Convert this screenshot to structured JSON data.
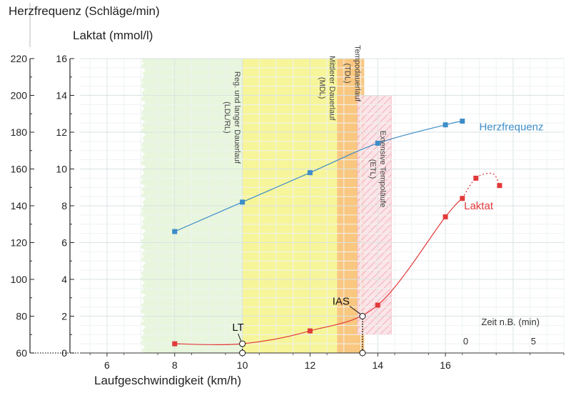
{
  "chart_data": {
    "type": "line",
    "hr_axis_label": "Herzfrequenz (Schläge/min)",
    "lactate_axis_label": "Laktat (mmol/l)",
    "xlabel": "Laufgeschwindigkeit (km/h)",
    "hr_ticks": [
      "60",
      "80",
      "100",
      "120",
      "140",
      "160",
      "180",
      "200",
      "220"
    ],
    "lactate_ticks": [
      "0",
      "2",
      "4",
      "6",
      "8",
      "10",
      "12",
      "14",
      "16"
    ],
    "x_ticks": [
      "6",
      "8",
      "10",
      "12",
      "14",
      "16"
    ],
    "xlim": [
      5.2,
      19.5
    ],
    "lactate_ylim": [
      0,
      16
    ],
    "hr_ylim": [
      60,
      220
    ],
    "grid": true,
    "zones": [
      {
        "label": "Reg. und langer Dauerlauf (LDL/RL)",
        "x_from": 7.0,
        "x_to": 10.0,
        "color": "#e8f6dd"
      },
      {
        "label": "Mittlerer Dauerlauf (MDL)",
        "x_from": 10.0,
        "x_to": 12.8,
        "color": "#f7f59a"
      },
      {
        "label": "Tempodauerlauf (TDL)",
        "x_from": 12.8,
        "x_to": 13.6,
        "color": "#f9c780"
      },
      {
        "label": "Extensive Tempoläufe (ETL)",
        "x_from": 13.4,
        "x_to": 14.4,
        "y_from": 1.0,
        "y_to": 14.0,
        "color": "#f9d6dc"
      }
    ],
    "series": [
      {
        "name": "Herzfrequenz",
        "color": "#3d8dc8",
        "axis": "hr",
        "x": [
          8,
          10,
          12,
          14,
          16,
          16.5
        ],
        "values": [
          126,
          142,
          158,
          174,
          184,
          186
        ]
      },
      {
        "name": "Laktat",
        "color": "#e23a3a",
        "axis": "lactate",
        "x": [
          8,
          10,
          12,
          14,
          16,
          16.5,
          16.9,
          17.6
        ],
        "values": [
          0.5,
          0.5,
          1.2,
          2.6,
          7.4,
          8.4,
          9.5,
          9.1
        ]
      }
    ],
    "annotations": [
      {
        "label": "LT",
        "x": 10.0,
        "lactate": 0.5
      },
      {
        "label": "IAS",
        "x": 13.55,
        "lactate": 2.0
      }
    ],
    "recovery_axis": {
      "label": "Zeit n.B. (min)",
      "ticks": [
        "0",
        "5"
      ]
    }
  }
}
